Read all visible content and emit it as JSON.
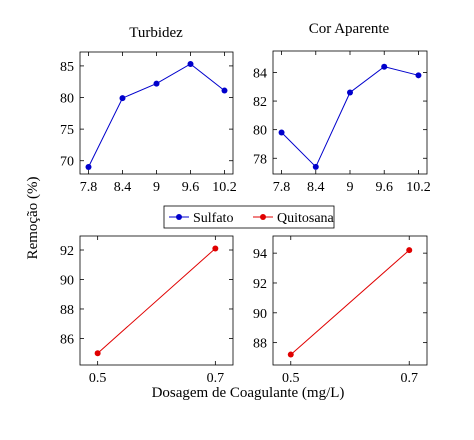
{
  "figure": {
    "ylabel": "Remoção (%)",
    "xlabel": "Dosagem de Coagulante (mg/L)",
    "legend": {
      "placement": "center, between rows",
      "entries": [
        {
          "name": "Sulfato",
          "color": "#0000cc",
          "marker": "circle"
        },
        {
          "name": "Quitosana",
          "color": "#e00000",
          "marker": "circle"
        }
      ]
    }
  },
  "chart_data": [
    {
      "type": "line",
      "title": "Turbidez",
      "series_name": "Sulfato",
      "color": "#0000cc",
      "x": [
        7.8,
        8.4,
        9.0,
        9.6,
        10.2
      ],
      "y": [
        69.0,
        79.9,
        82.2,
        85.3,
        81.1
      ],
      "xticks": [
        "7.8",
        "8.4",
        "9",
        "9.6",
        "10.2"
      ],
      "yticks": [
        70,
        75,
        80,
        85
      ],
      "xlim": [
        7.65,
        10.35
      ],
      "ylim": [
        67.9,
        87.2
      ],
      "grid": false
    },
    {
      "type": "line",
      "title": "Cor Aparente",
      "series_name": "Sulfato",
      "color": "#0000cc",
      "x": [
        7.8,
        8.4,
        9.0,
        9.6,
        10.2
      ],
      "y": [
        79.8,
        77.4,
        82.6,
        84.4,
        83.8
      ],
      "xticks": [
        "7.8",
        "8.4",
        "9",
        "9.6",
        "10.2"
      ],
      "yticks": [
        78,
        80,
        82,
        84
      ],
      "xlim": [
        7.65,
        10.35
      ],
      "ylim": [
        76.9,
        85.5
      ],
      "grid": false
    },
    {
      "type": "line",
      "title": "",
      "series_name": "Quitosana",
      "color": "#e00000",
      "x": [
        0.5,
        0.7
      ],
      "y": [
        85.0,
        92.1
      ],
      "xticks": [
        "0.5",
        "0.7"
      ],
      "yticks": [
        86,
        88,
        90,
        92
      ],
      "xlim": [
        0.47,
        0.73
      ],
      "ylim": [
        84.2,
        92.95
      ],
      "grid": false
    },
    {
      "type": "line",
      "title": "",
      "series_name": "Quitosana",
      "color": "#e00000",
      "x": [
        0.5,
        0.7
      ],
      "y": [
        87.2,
        94.2
      ],
      "xticks": [
        "0.5",
        "0.7"
      ],
      "yticks": [
        88,
        90,
        92,
        94
      ],
      "xlim": [
        0.47,
        0.73
      ],
      "ylim": [
        86.5,
        95.15
      ],
      "grid": false
    }
  ]
}
